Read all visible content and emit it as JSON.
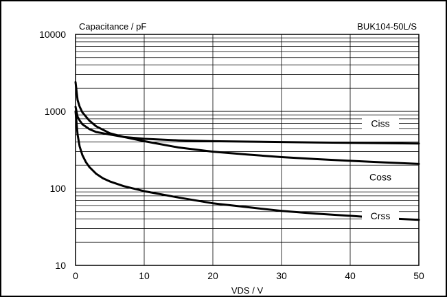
{
  "chart_data": {
    "type": "line",
    "title": "Capacitance / pF",
    "part_label": "BUK104-50L/S",
    "xlabel": "VDS / V",
    "ylabel": "Capacitance / pF",
    "x_ticks": [
      0,
      10,
      20,
      30,
      40,
      50
    ],
    "y_ticks": [
      10,
      100,
      1000,
      10000
    ],
    "xlim": [
      0,
      50
    ],
    "ylim": [
      10,
      10000
    ],
    "y_scale": "log",
    "grid": true,
    "series": [
      {
        "name": "Ciss",
        "x": [
          0,
          0.3,
          0.6,
          1,
          2,
          3,
          5,
          7,
          10,
          15,
          20,
          25,
          30,
          35,
          40,
          45,
          50
        ],
        "y": [
          1150,
          850,
          760,
          680,
          590,
          540,
          500,
          465,
          440,
          420,
          410,
          405,
          400,
          395,
          390,
          387,
          383
        ]
      },
      {
        "name": "Coss",
        "x": [
          0,
          0.3,
          0.6,
          1,
          2,
          3,
          5,
          7,
          10,
          15,
          20,
          25,
          30,
          35,
          40,
          45,
          50
        ],
        "y": [
          2400,
          1400,
          1150,
          970,
          760,
          640,
          520,
          465,
          410,
          340,
          300,
          275,
          255,
          240,
          228,
          217,
          208
        ]
      },
      {
        "name": "Crss",
        "x": [
          0,
          0.3,
          0.6,
          1,
          1.5,
          2,
          3,
          4,
          5,
          7,
          10,
          15,
          20,
          25,
          30,
          35,
          40,
          45,
          50
        ],
        "y": [
          1000,
          500,
          350,
          270,
          220,
          190,
          155,
          135,
          123,
          107,
          92,
          76,
          64,
          57,
          51,
          47,
          44,
          41,
          39
        ]
      }
    ]
  }
}
